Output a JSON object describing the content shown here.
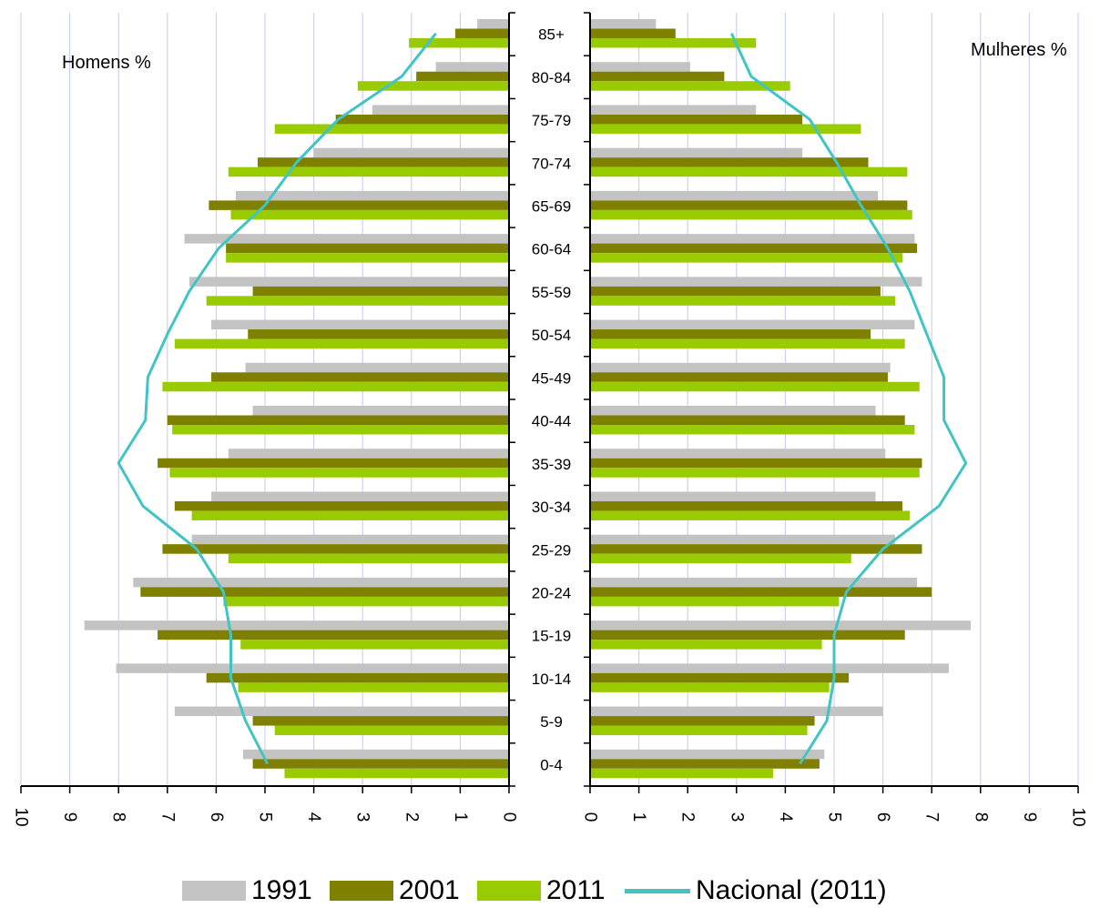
{
  "labels": {
    "left_title": "Homens %",
    "right_title": "Mulheres %"
  },
  "legend": [
    {
      "key": "y1991",
      "label": "1991",
      "color": "#c3c3c3",
      "kind": "bar"
    },
    {
      "key": "y2001",
      "label": "2001",
      "color": "#7f7f00",
      "kind": "bar"
    },
    {
      "key": "y2011",
      "label": "2011",
      "color": "#99cc00",
      "kind": "bar"
    },
    {
      "key": "nacional",
      "label": "Nacional (2011)",
      "color": "#40c4c4",
      "kind": "line"
    }
  ],
  "chart_data": {
    "type": "bar",
    "subtype": "population-pyramid",
    "categories": [
      "85+",
      "80-84",
      "75-79",
      "70-74",
      "65-69",
      "60-64",
      "55-59",
      "50-54",
      "45-49",
      "40-44",
      "35-39",
      "30-34",
      "25-29",
      "20-24",
      "15-19",
      "10-14",
      "5-9",
      "0-4"
    ],
    "xlim": [
      0,
      10
    ],
    "x_ticks": [
      "0",
      "1",
      "2",
      "3",
      "4",
      "5",
      "6",
      "7",
      "8",
      "9",
      "10"
    ],
    "grid": true,
    "legend_position": "bottom",
    "men": {
      "label": "Homens %",
      "series": [
        {
          "name": "1991",
          "color": "#c3c3c3",
          "values": [
            0.65,
            1.5,
            2.8,
            4.0,
            5.6,
            6.65,
            6.55,
            6.1,
            5.4,
            5.25,
            5.75,
            6.1,
            6.5,
            7.7,
            8.7,
            8.05,
            6.85,
            5.45
          ]
        },
        {
          "name": "2001",
          "color": "#7f7f00",
          "values": [
            1.1,
            1.9,
            3.55,
            5.15,
            6.15,
            5.8,
            5.25,
            5.35,
            6.1,
            7.0,
            7.2,
            6.85,
            7.1,
            7.55,
            7.2,
            6.2,
            5.25,
            5.25
          ]
        },
        {
          "name": "2011",
          "color": "#99cc00",
          "values": [
            2.05,
            3.1,
            4.8,
            5.75,
            5.7,
            5.8,
            6.2,
            6.85,
            7.1,
            6.9,
            6.95,
            6.5,
            5.75,
            5.85,
            5.5,
            5.55,
            4.8,
            4.6
          ]
        },
        {
          "name": "Nacional (2011)",
          "color": "#40c4c4",
          "type": "line",
          "values": [
            1.5,
            2.2,
            3.5,
            4.35,
            5.0,
            5.95,
            6.55,
            7.0,
            7.4,
            7.45,
            8.0,
            7.5,
            6.4,
            5.85,
            5.7,
            5.7,
            5.4,
            4.95
          ]
        }
      ]
    },
    "women": {
      "label": "Mulheres %",
      "series": [
        {
          "name": "1991",
          "color": "#c3c3c3",
          "values": [
            1.35,
            2.05,
            3.4,
            4.35,
            5.9,
            6.65,
            6.8,
            6.65,
            6.15,
            5.85,
            6.05,
            5.85,
            6.25,
            6.7,
            7.8,
            7.35,
            6.0,
            4.8
          ]
        },
        {
          "name": "2001",
          "color": "#7f7f00",
          "values": [
            1.75,
            2.75,
            4.35,
            5.7,
            6.5,
            6.7,
            5.95,
            5.75,
            6.1,
            6.45,
            6.8,
            6.4,
            6.8,
            7.0,
            6.45,
            5.3,
            4.6,
            4.7
          ]
        },
        {
          "name": "2011",
          "color": "#99cc00",
          "values": [
            3.4,
            4.1,
            5.55,
            6.5,
            6.6,
            6.4,
            6.25,
            6.45,
            6.75,
            6.65,
            6.75,
            6.55,
            5.35,
            5.1,
            4.75,
            4.9,
            4.45,
            3.75
          ]
        },
        {
          "name": "Nacional (2011)",
          "color": "#40c4c4",
          "type": "line",
          "values": [
            2.9,
            3.3,
            4.5,
            5.05,
            5.55,
            6.1,
            6.55,
            6.9,
            7.25,
            7.25,
            7.7,
            7.15,
            6.0,
            5.25,
            5.0,
            5.0,
            4.85,
            4.3
          ]
        }
      ]
    }
  }
}
